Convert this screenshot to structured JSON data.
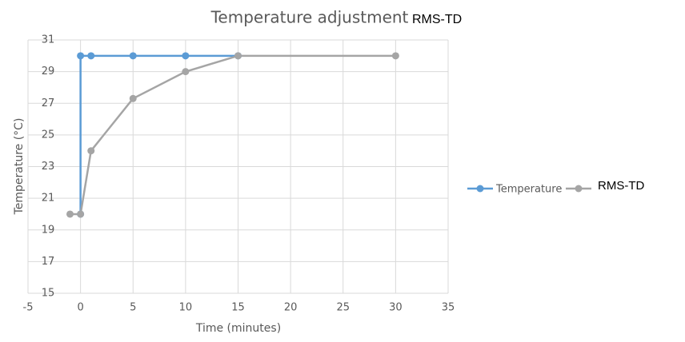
{
  "chart_data": {
    "type": "line",
    "title": "Temperature adjustment",
    "annotation": "RMS-TD",
    "x_label": "Time (minutes)",
    "y_label": "Temperature (°C)",
    "series": [
      {
        "name": "Temperature",
        "color": "#5b9bd5",
        "x": [
          0,
          0,
          1,
          5,
          10,
          15
        ],
        "values": [
          20,
          30,
          30,
          30,
          30,
          30
        ]
      },
      {
        "name": "RMS-TD",
        "color": "#a5a5a5",
        "x": [
          -1,
          0,
          1,
          5,
          10,
          15,
          30
        ],
        "values": [
          20,
          20,
          24,
          27.3,
          29,
          30,
          30
        ]
      }
    ],
    "xlim": [
      -5,
      35
    ],
    "xticks": [
      -5,
      0,
      5,
      10,
      15,
      20,
      25,
      30,
      35
    ],
    "ylim": [
      15,
      31
    ],
    "yticks": [
      15,
      17,
      19,
      21,
      23,
      25,
      27,
      29,
      31
    ],
    "grid": true,
    "legend": "right"
  }
}
